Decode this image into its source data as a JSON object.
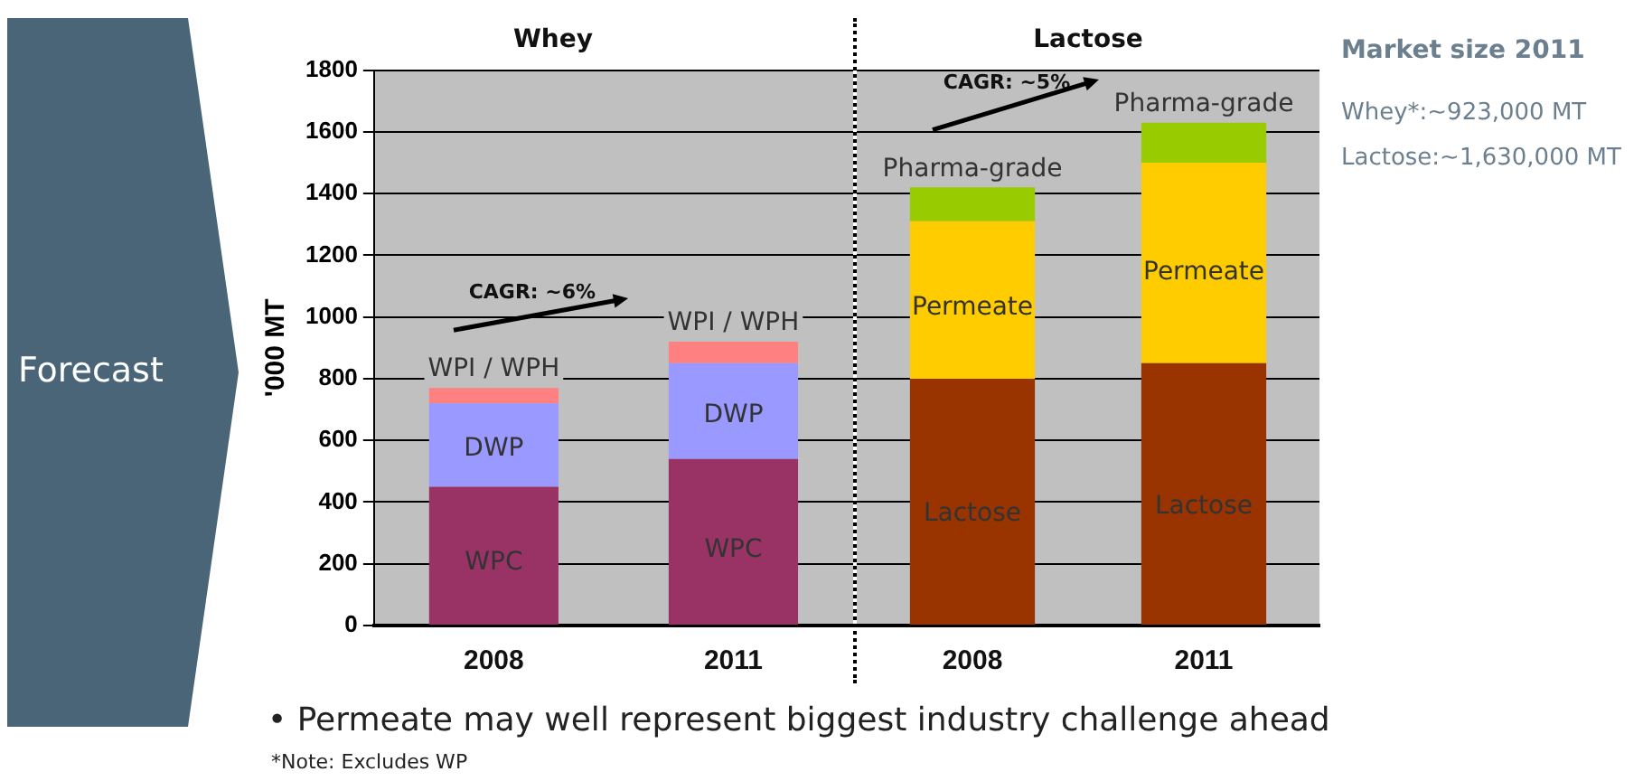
{
  "chart_data": [
    {
      "type": "bar",
      "stacked": true,
      "title": "Whey",
      "categories": [
        "2008",
        "2011"
      ],
      "ylabel": "'000 MT",
      "ylim": [
        0,
        1800
      ],
      "yticks": [
        0,
        200,
        400,
        600,
        800,
        1000,
        1200,
        1400,
        1600,
        1800
      ],
      "grid": "y",
      "legend": false,
      "series": [
        {
          "name": "WPC",
          "color": "#993366",
          "values": [
            450,
            540
          ]
        },
        {
          "name": "DWP",
          "color": "#9999ff",
          "values": [
            270,
            310
          ]
        },
        {
          "name": "WPI / WPH",
          "color": "#ff8080",
          "values": [
            50,
            70
          ]
        }
      ],
      "annotations": [
        "CAGR: ~6%",
        "Forecast",
        "• Permeate may well represent biggest industry challenge ahead",
        "*Note: Excludes WP"
      ]
    },
    {
      "type": "bar",
      "stacked": true,
      "title": "Lactose",
      "categories": [
        "2008",
        "2011"
      ],
      "ylim": [
        0,
        1800
      ],
      "yticks": [
        0,
        200,
        400,
        600,
        800,
        1000,
        1200,
        1400,
        1600,
        1800
      ],
      "tick_labels": "x",
      "grid": "y",
      "legend": false,
      "series": [
        {
          "name": "Lactose",
          "color": "#993300",
          "values": [
            800,
            850
          ]
        },
        {
          "name": "Permeate",
          "color": "#ffcc00",
          "values": [
            510,
            650
          ]
        },
        {
          "name": "Pharma-grade",
          "color": "#99cc00",
          "values": [
            110,
            130
          ]
        }
      ],
      "annotations": [
        "CAGR: ~5%",
        "Market size 2011",
        "Whey*:~923,000 MT",
        "Lactose:~1,630,000 MT"
      ]
    }
  ]
}
